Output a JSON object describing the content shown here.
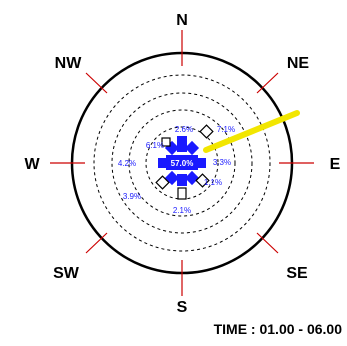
{
  "chart_data": {
    "type": "wind-rose",
    "title": "",
    "directions": [
      "N",
      "NE",
      "E",
      "SE",
      "S",
      "SW",
      "W",
      "NW"
    ],
    "calm_percent_label": "57.0%",
    "sectors": [
      {
        "direction": "N",
        "label": "2.6%"
      },
      {
        "direction": "NE",
        "label": "7.1%"
      },
      {
        "direction": "E",
        "label": "3.3%"
      },
      {
        "direction": "SE",
        "label": "1.1%"
      },
      {
        "direction": "S",
        "label": "2.1%"
      },
      {
        "direction": "SW",
        "label": "3.9%"
      },
      {
        "direction": "W",
        "label": "4.2%"
      },
      {
        "direction": "NW",
        "label": "6.1%"
      }
    ],
    "time_label": "TIME : 01.00 - 06.00",
    "colors": {
      "rings": "#000000",
      "tick_lines": "#cc0000",
      "labels": "#1a1aff",
      "calm_box": "#1a1aff",
      "yellow_bar": "#f2e600"
    }
  }
}
